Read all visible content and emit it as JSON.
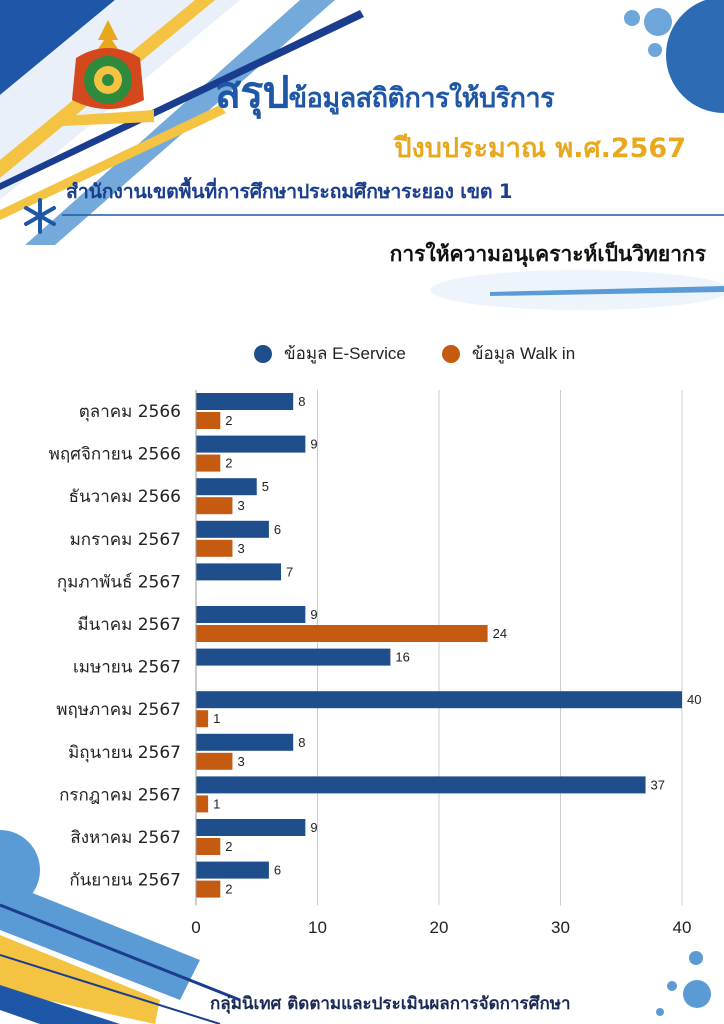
{
  "header": {
    "logo_text": "สำนักงานเขตพื้นที่การศึกษาประถมศึกษาระยอง เขต ๑",
    "title_main": "สรุป",
    "title_rest": "ข้อมูลสถิติการให้บริการ",
    "fiscal_year": "ปีงบประมาณ พ.ศ.2567",
    "office": "สำนักงานเขตพื้นที่การศึกษาประถมศึกษาระยอง เขต 1",
    "subtitle": "การให้ความอนุเคราะห์เป็นวิทยากร"
  },
  "colors": {
    "eservice": "#1f4e8c",
    "walkin": "#c55a11",
    "accent_blue": "#1e57a8",
    "accent_yellow": "#f5c342"
  },
  "chart_data": {
    "type": "bar",
    "orientation": "horizontal",
    "categories": [
      "ตุลาคม 2566",
      "พฤศจิกายน 2566",
      "ธันวาคม 2566",
      "มกราคม 2567",
      "กุมภาพันธ์ 2567",
      "มีนาคม 2567",
      "เมษายน 2567",
      "พฤษภาคม 2567",
      "มิถุนายน 2567",
      "กรกฎาคม 2567",
      "สิงหาคม 2567",
      "กันยายน 2567"
    ],
    "series": [
      {
        "name": "ข้อมูล E-Service",
        "values": [
          8,
          9,
          5,
          6,
          7,
          9,
          16,
          40,
          8,
          37,
          9,
          6
        ]
      },
      {
        "name": "ข้อมูล Walk in",
        "values": [
          2,
          2,
          3,
          3,
          null,
          24,
          null,
          1,
          3,
          1,
          2,
          2
        ]
      }
    ],
    "xlim": [
      0,
      40
    ],
    "xticks": [
      0,
      10,
      20,
      30,
      40
    ],
    "grid": true,
    "legend": "top"
  },
  "footer": "กลุ่มนิเทศ ติดตามและประเมินผลการจัดการศึกษา"
}
